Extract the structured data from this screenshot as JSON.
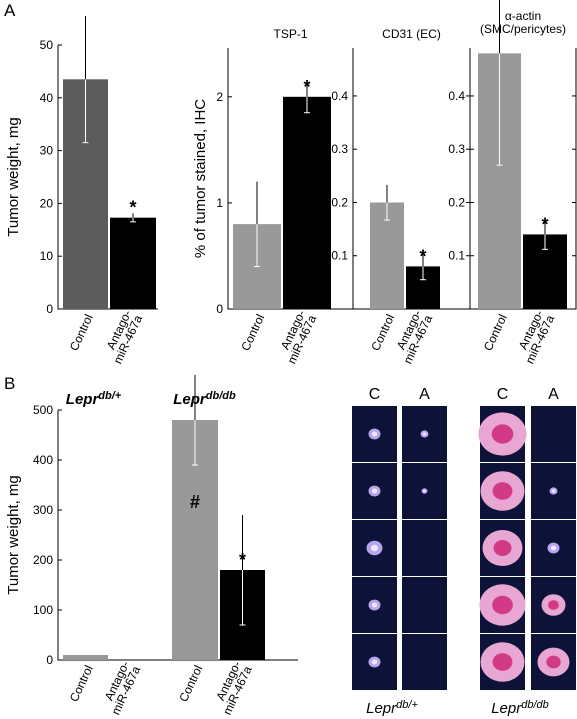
{
  "panel_labels": [
    "A",
    "B"
  ],
  "chart_data": [
    {
      "type": "bar",
      "y_label": "Tumor weight, mg",
      "categories": [
        [
          "Control"
        ],
        [
          "Antago-",
          "miR-467a"
        ]
      ],
      "values": [
        43.5,
        17.3
      ],
      "errors": [
        12,
        0.8
      ],
      "colors": [
        "#5c5c5c",
        "#000000"
      ],
      "value_markers": [
        null,
        "*"
      ],
      "ylim": [
        0,
        50
      ],
      "yticks": [
        0,
        10,
        20,
        30,
        40,
        50
      ]
    },
    {
      "type": "bar",
      "title": "TSP-1",
      "y_label": "% of tumor stained, IHC",
      "categories": [
        [
          "Control"
        ],
        [
          "Antago-",
          "miR-467a"
        ]
      ],
      "values": [
        0.8,
        2.0
      ],
      "errors": [
        0.4,
        0.15
      ],
      "colors": [
        "#999999",
        "#000000"
      ],
      "value_markers": [
        null,
        "*"
      ],
      "ylim": [
        0,
        2.46
      ],
      "yticks": [
        0,
        1,
        2
      ]
    },
    {
      "type": "bar",
      "title": "CD31 (EC)",
      "categories": [
        [
          "Control"
        ],
        [
          "Antago-",
          "miR-467a"
        ]
      ],
      "values": [
        0.2,
        0.08
      ],
      "errors": [
        0.033,
        0.025
      ],
      "colors": [
        "#999999",
        "#000000"
      ],
      "value_markers": [
        null,
        "*"
      ],
      "ylim": [
        0,
        0.49
      ],
      "yticks": [
        0.1,
        0.2,
        0.3,
        0.4
      ]
    },
    {
      "type": "bar",
      "title": [
        "α-actin",
        "(SMC/pericytes)"
      ],
      "categories": [
        [
          "Control"
        ],
        [
          "Antago-",
          "miR-467a"
        ]
      ],
      "values": [
        0.48,
        0.14
      ],
      "errors": [
        0.21,
        0.028
      ],
      "colors": [
        "#999999",
        "#000000"
      ],
      "value_markers": [
        null,
        "*"
      ],
      "ylim": [
        0,
        0.49
      ],
      "yticks": [
        0.1,
        0.2,
        0.3,
        0.4
      ]
    },
    {
      "type": "bar",
      "y_label": "Tumor weight, mg",
      "groups": [
        {
          "name": "Lepr",
          "superscript": "db/+"
        },
        {
          "name": "Lepr",
          "superscript": "db/db"
        }
      ],
      "categories": [
        [
          "Control"
        ],
        [
          "Antago-",
          "miR-467a"
        ],
        [
          "Control"
        ],
        [
          "Antago-",
          "miR-467a"
        ]
      ],
      "values": [
        10,
        1,
        480,
        180
      ],
      "errors": [
        0,
        0,
        90,
        110
      ],
      "colors": [
        "#999999",
        "#000000",
        "#999999",
        "#000000"
      ],
      "value_markers": [
        null,
        null,
        "#",
        "*"
      ],
      "ylim": [
        0,
        500
      ],
      "yticks": [
        0,
        100,
        200,
        300,
        400,
        500
      ]
    }
  ],
  "images": {
    "column_labels": [
      "C",
      "A",
      "C",
      "A"
    ],
    "groups": [
      {
        "name": "Lepr",
        "superscript": "db/+"
      },
      {
        "name": "Lepr",
        "superscript": "db/db"
      }
    ]
  }
}
